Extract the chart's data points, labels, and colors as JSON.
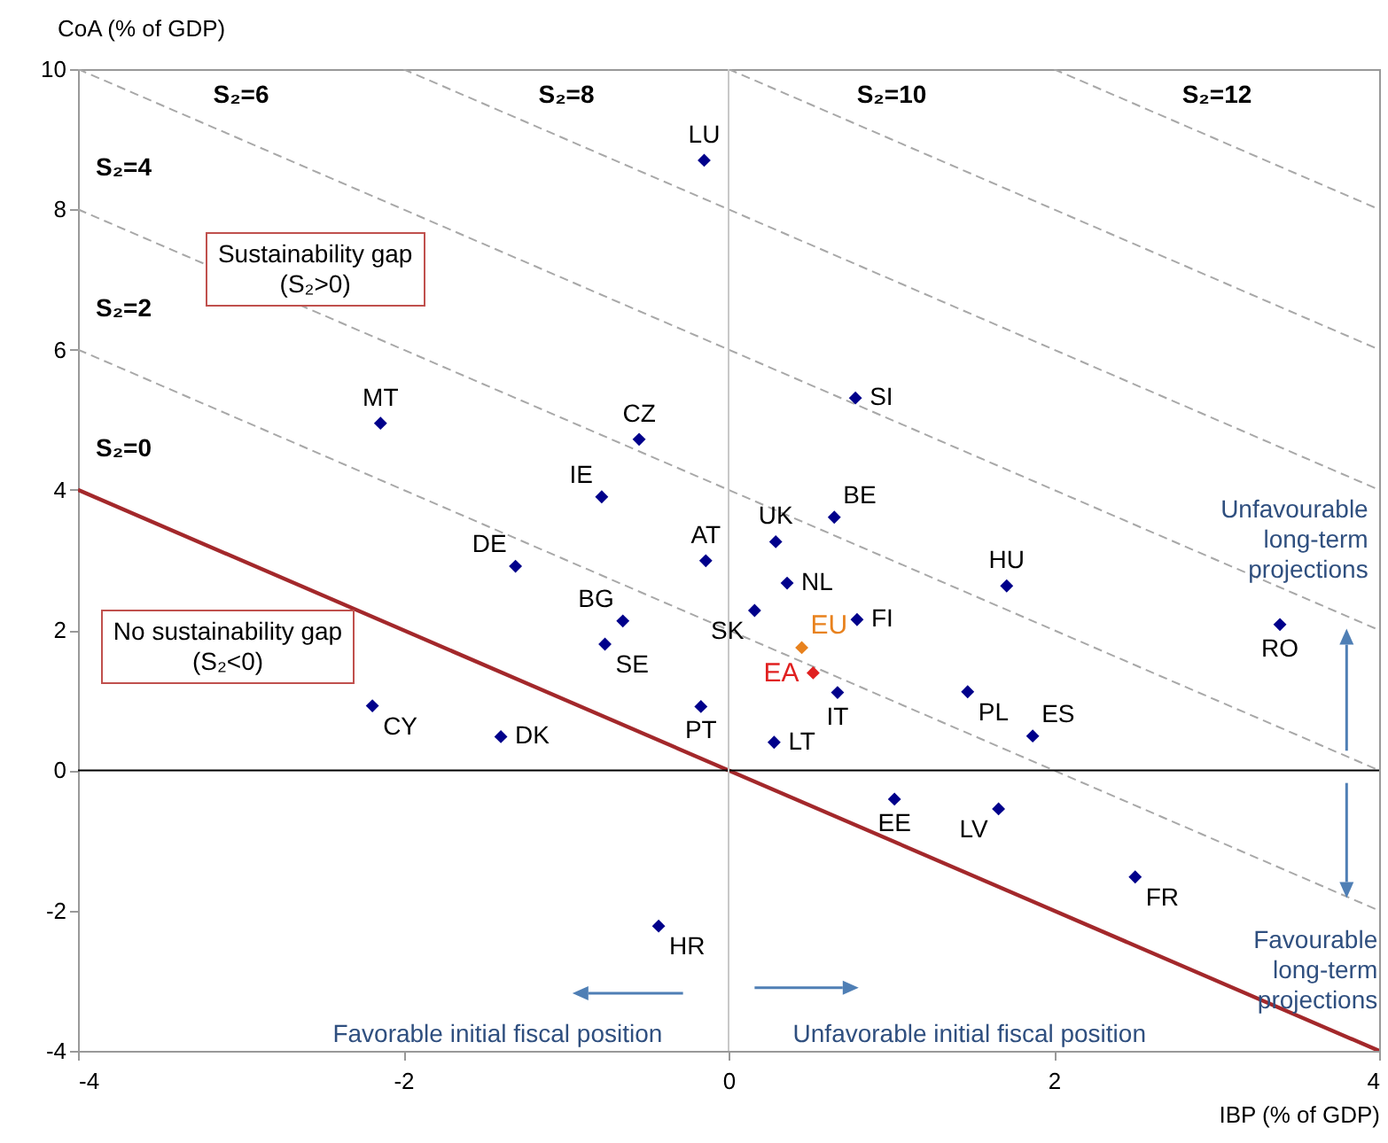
{
  "chart_data": {
    "type": "scatter",
    "xlabel": "IBP (% of GDP)",
    "ylabel": "CoA (% of GDP)",
    "xlim": [
      -4,
      4
    ],
    "xticks": [
      -4,
      -2,
      0,
      2,
      4
    ],
    "ylim": [
      -4,
      10
    ],
    "yticks": [
      -4,
      -2,
      0,
      2,
      4,
      6,
      8,
      10
    ],
    "grid": false,
    "legend": false,
    "ref_lines": [
      {
        "axis": "y",
        "value": 0,
        "color": "#000000"
      },
      {
        "axis": "x",
        "value": 0,
        "color": "#c8c8c8"
      }
    ],
    "series": [
      {
        "type": "line",
        "name": "S₂=0",
        "color": "#a3282b",
        "line_style": "solid",
        "x": [
          -4,
          4
        ],
        "values": [
          4,
          -4
        ]
      },
      {
        "type": "line",
        "name": "S₂=2",
        "color": "#a8a8a8",
        "line_style": "dashed",
        "x": [
          -4,
          4
        ],
        "values": [
          6,
          -2
        ]
      },
      {
        "type": "line",
        "name": "S₂=4",
        "color": "#a8a8a8",
        "line_style": "dashed",
        "x": [
          -4,
          4
        ],
        "values": [
          8,
          0
        ]
      },
      {
        "type": "line",
        "name": "S₂=6",
        "color": "#a8a8a8",
        "line_style": "dashed",
        "x": [
          -4,
          4
        ],
        "values": [
          10,
          2
        ]
      },
      {
        "type": "line",
        "name": "S₂=8",
        "color": "#a8a8a8",
        "line_style": "dashed",
        "x": [
          -2,
          4
        ],
        "values": [
          10,
          4
        ]
      },
      {
        "type": "line",
        "name": "S₂=10",
        "color": "#a8a8a8",
        "line_style": "dashed",
        "x": [
          0,
          4
        ],
        "values": [
          10,
          6
        ]
      },
      {
        "type": "line",
        "name": "S₂=12",
        "color": "#a8a8a8",
        "line_style": "dashed",
        "x": [
          2,
          4
        ],
        "values": [
          10,
          8
        ]
      },
      {
        "type": "scatter",
        "marker": "diamond",
        "color": "#00008b",
        "x": [
          -0.15,
          -2.14,
          -0.55,
          -0.78,
          -1.31,
          -0.14,
          -0.65,
          -0.76,
          -0.17,
          -2.19,
          -1.4,
          -0.43,
          0.78,
          0.65,
          0.29,
          0.36,
          1.71,
          0.16,
          0.79,
          0.67,
          1.47,
          1.87,
          0.28,
          3.39,
          1.02,
          1.66,
          2.5
        ],
        "values": [
          8.7,
          4.95,
          4.72,
          3.9,
          2.91,
          2.99,
          2.13,
          1.8,
          0.91,
          0.92,
          0.48,
          -2.22,
          5.31,
          3.61,
          3.26,
          2.67,
          2.63,
          2.28,
          2.15,
          1.11,
          1.12,
          0.49,
          0.4,
          2.08,
          -0.41,
          -0.55,
          -1.52
        ]
      },
      {
        "type": "scatter",
        "marker": "diamond",
        "name": "EU",
        "color": "#e8821e",
        "x": [
          0.45
        ],
        "values": [
          1.75
        ]
      },
      {
        "type": "scatter",
        "marker": "diamond",
        "name": "EA",
        "color": "#e02020",
        "x": [
          0.52
        ],
        "values": [
          1.39
        ]
      }
    ],
    "annotations": [
      {
        "text": "LU",
        "x": -0.15,
        "y": 8.7
      },
      {
        "text": "MT",
        "x": -2.14,
        "y": 4.95
      },
      {
        "text": "CZ",
        "x": -0.55,
        "y": 4.72
      },
      {
        "text": "IE",
        "x": -0.78,
        "y": 3.9
      },
      {
        "text": "DE",
        "x": -1.31,
        "y": 2.91
      },
      {
        "text": "AT",
        "x": -0.14,
        "y": 2.99
      },
      {
        "text": "BG",
        "x": -0.65,
        "y": 2.13
      },
      {
        "text": "SE",
        "x": -0.76,
        "y": 1.8
      },
      {
        "text": "PT",
        "x": -0.17,
        "y": 0.91
      },
      {
        "text": "CY",
        "x": -2.19,
        "y": 0.92
      },
      {
        "text": "DK",
        "x": -1.4,
        "y": 0.48
      },
      {
        "text": "HR",
        "x": -0.43,
        "y": -2.22
      },
      {
        "text": "SI",
        "x": 0.78,
        "y": 5.31
      },
      {
        "text": "BE",
        "x": 0.65,
        "y": 3.61
      },
      {
        "text": "UK",
        "x": 0.29,
        "y": 3.26
      },
      {
        "text": "NL",
        "x": 0.36,
        "y": 2.67
      },
      {
        "text": "HU",
        "x": 1.71,
        "y": 2.63
      },
      {
        "text": "SK",
        "x": 0.16,
        "y": 2.28
      },
      {
        "text": "FI",
        "x": 0.79,
        "y": 2.15
      },
      {
        "text": "IT",
        "x": 0.67,
        "y": 1.11
      },
      {
        "text": "PL",
        "x": 1.47,
        "y": 1.12
      },
      {
        "text": "ES",
        "x": 1.87,
        "y": 0.49
      },
      {
        "text": "LT",
        "x": 0.28,
        "y": 0.4
      },
      {
        "text": "RO",
        "x": 3.39,
        "y": 2.08
      },
      {
        "text": "EE",
        "x": 1.02,
        "y": -0.41
      },
      {
        "text": "LV",
        "x": 1.66,
        "y": -0.55
      },
      {
        "text": "FR",
        "x": 2.5,
        "y": -1.52
      },
      "Sustainability gap\n(S₂>0)",
      "No sustainability gap\n(S₂<0)",
      "Unfavourable\nlong-term\nprojections",
      "Favourable\nlong-term\nprojections",
      "Favorable initial fiscal position",
      "Unfavorable initial fiscal position"
    ]
  }
}
